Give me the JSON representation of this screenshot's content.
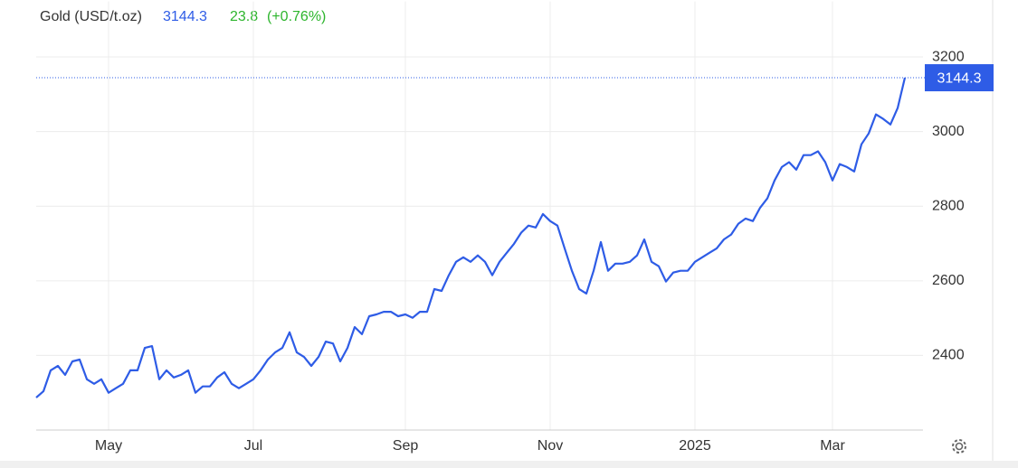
{
  "chart_data": {
    "type": "line",
    "title": "Gold (USD/t.oz)",
    "change": "23.8",
    "change_pct": "(+0.76%)",
    "color": "#2e5ce6",
    "categories": [
      null,
      null,
      null,
      null,
      null,
      null,
      null,
      null,
      null,
      null,
      "May",
      null,
      null,
      null,
      null,
      null,
      null,
      null,
      null,
      null,
      null,
      null,
      null,
      null,
      null,
      null,
      null,
      null,
      null,
      null,
      "Jul",
      null,
      null,
      null,
      null,
      null,
      null,
      null,
      null,
      null,
      null,
      null,
      null,
      null,
      null,
      null,
      null,
      null,
      null,
      null,
      null,
      "Sep",
      null,
      null,
      null,
      null,
      null,
      null,
      null,
      null,
      null,
      null,
      null,
      null,
      null,
      null,
      null,
      null,
      null,
      null,
      null,
      "Nov",
      null,
      null,
      null,
      null,
      null,
      null,
      null,
      null,
      null,
      null,
      null,
      null,
      null,
      null,
      null,
      null,
      null,
      null,
      null,
      "2025",
      null,
      null,
      null,
      null,
      null,
      null,
      null,
      null,
      null,
      null,
      null,
      null,
      null,
      null,
      null,
      null,
      null,
      null,
      "Mar",
      null,
      null,
      null,
      null,
      null,
      null,
      null,
      null,
      null,
      null
    ],
    "values": [
      2287,
      2304,
      2360,
      2372,
      2348,
      2384,
      2389,
      2336,
      2324,
      2336,
      2300,
      2312,
      2324,
      2360,
      2360,
      2420,
      2425,
      2336,
      2360,
      2341,
      2348,
      2360,
      2300,
      2317,
      2317,
      2341,
      2355,
      2324,
      2312,
      2324,
      2336,
      2360,
      2389,
      2408,
      2420,
      2462,
      2408,
      2396,
      2372,
      2396,
      2437,
      2432,
      2384,
      2420,
      2476,
      2457,
      2505,
      2510,
      2517,
      2517,
      2505,
      2510,
      2501,
      2517,
      2517,
      2578,
      2573,
      2615,
      2651,
      2663,
      2651,
      2668,
      2651,
      2615,
      2651,
      2675,
      2699,
      2729,
      2748,
      2743,
      2779,
      2760,
      2748,
      2687,
      2627,
      2578,
      2566,
      2627,
      2704,
      2627,
      2646,
      2646,
      2651,
      2668,
      2711,
      2651,
      2639,
      2598,
      2622,
      2627,
      2627,
      2651,
      2663,
      2675,
      2687,
      2711,
      2724,
      2753,
      2767,
      2760,
      2796,
      2821,
      2869,
      2905,
      2918,
      2898,
      2937,
      2937,
      2947,
      2918,
      2869,
      2913,
      2905,
      2893,
      2966,
      2995,
      3046,
      3034,
      3019,
      3063,
      3144.3
    ],
    "ylim": [
      2200,
      3300
    ],
    "yticks": [
      2400,
      2600,
      2800,
      3000,
      3200
    ],
    "grid": true
  }
}
